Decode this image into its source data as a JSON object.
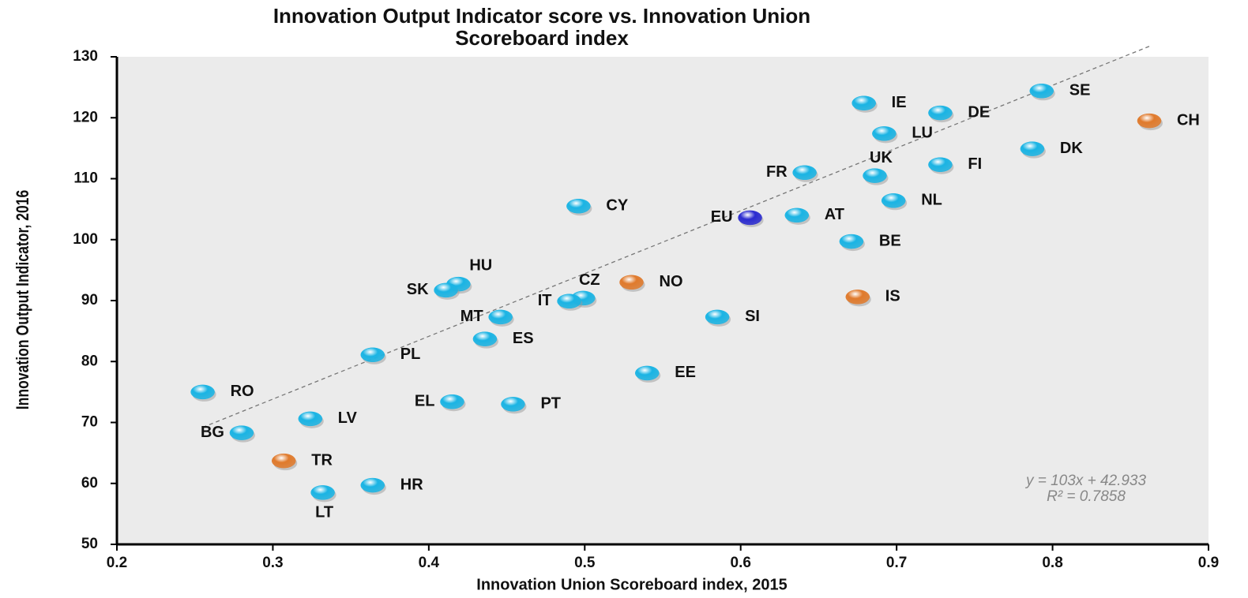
{
  "chart_data": {
    "type": "scatter",
    "title": [
      "Innovation Output Indicator score  vs. Innovation Union",
      "Scoreboard index"
    ],
    "x_label": "Innovation  Union  Scoreboard index, 2015",
    "y_label": "Innovation Output Indicator, 2016",
    "labels": [
      "SE",
      "IE",
      "DE",
      "CH",
      "LU",
      "DK",
      "FI",
      "UK",
      "FR",
      "NL",
      "CY",
      "EU",
      "AT",
      "BE",
      "HU",
      "NO",
      "SK",
      "CZ",
      "IT",
      "IS",
      "MT",
      "SI",
      "ES",
      "PL",
      "EE",
      "RO",
      "EL",
      "PT",
      "LV",
      "BG",
      "TR",
      "HR",
      "LT"
    ],
    "x": [
      0.793,
      0.679,
      0.728,
      0.862,
      0.692,
      0.787,
      0.728,
      0.686,
      0.641,
      0.698,
      0.496,
      0.606,
      0.636,
      0.671,
      0.419,
      0.53,
      0.411,
      0.499,
      0.49,
      0.675,
      0.446,
      0.585,
      0.436,
      0.364,
      0.54,
      0.255,
      0.415,
      0.454,
      0.324,
      0.28,
      0.307,
      0.364,
      0.332
    ],
    "values": [
      124.4,
      122.4,
      120.8,
      119.5,
      117.4,
      114.9,
      112.3,
      110.5,
      111.0,
      106.4,
      105.5,
      103.6,
      104.0,
      99.7,
      92.7,
      93.0,
      91.7,
      90.4,
      89.9,
      90.6,
      87.3,
      87.3,
      83.7,
      81.1,
      78.1,
      75.0,
      73.4,
      73.0,
      70.6,
      68.3,
      63.7,
      59.7,
      58.5
    ],
    "colors": [
      "#1ab4e4",
      "#1ab4e4",
      "#1ab4e4",
      "#e07a2c",
      "#1ab4e4",
      "#1ab4e4",
      "#1ab4e4",
      "#1ab4e4",
      "#1ab4e4",
      "#1ab4e4",
      "#1ab4e4",
      "#2b2bd0",
      "#1ab4e4",
      "#1ab4e4",
      "#1ab4e4",
      "#e07a2c",
      "#1ab4e4",
      "#1ab4e4",
      "#1ab4e4",
      "#e07a2c",
      "#1ab4e4",
      "#1ab4e4",
      "#1ab4e4",
      "#1ab4e4",
      "#1ab4e4",
      "#1ab4e4",
      "#1ab4e4",
      "#1ab4e4",
      "#1ab4e4",
      "#1ab4e4",
      "#e07a2c",
      "#1ab4e4",
      "#1ab4e4"
    ],
    "trendline": {
      "slope": 103,
      "intercept": 42.933,
      "equation": "y = 103x + 42.933",
      "r2": "R² = 0.7858"
    },
    "xlim": [
      0.2,
      0.9
    ],
    "xticks": [
      0.2,
      0.3,
      0.4,
      0.5,
      0.6,
      0.7,
      0.8,
      0.9
    ],
    "ylim": [
      50,
      130
    ],
    "yticks": [
      50,
      60,
      70,
      80,
      90,
      100,
      110,
      120,
      130
    ]
  }
}
